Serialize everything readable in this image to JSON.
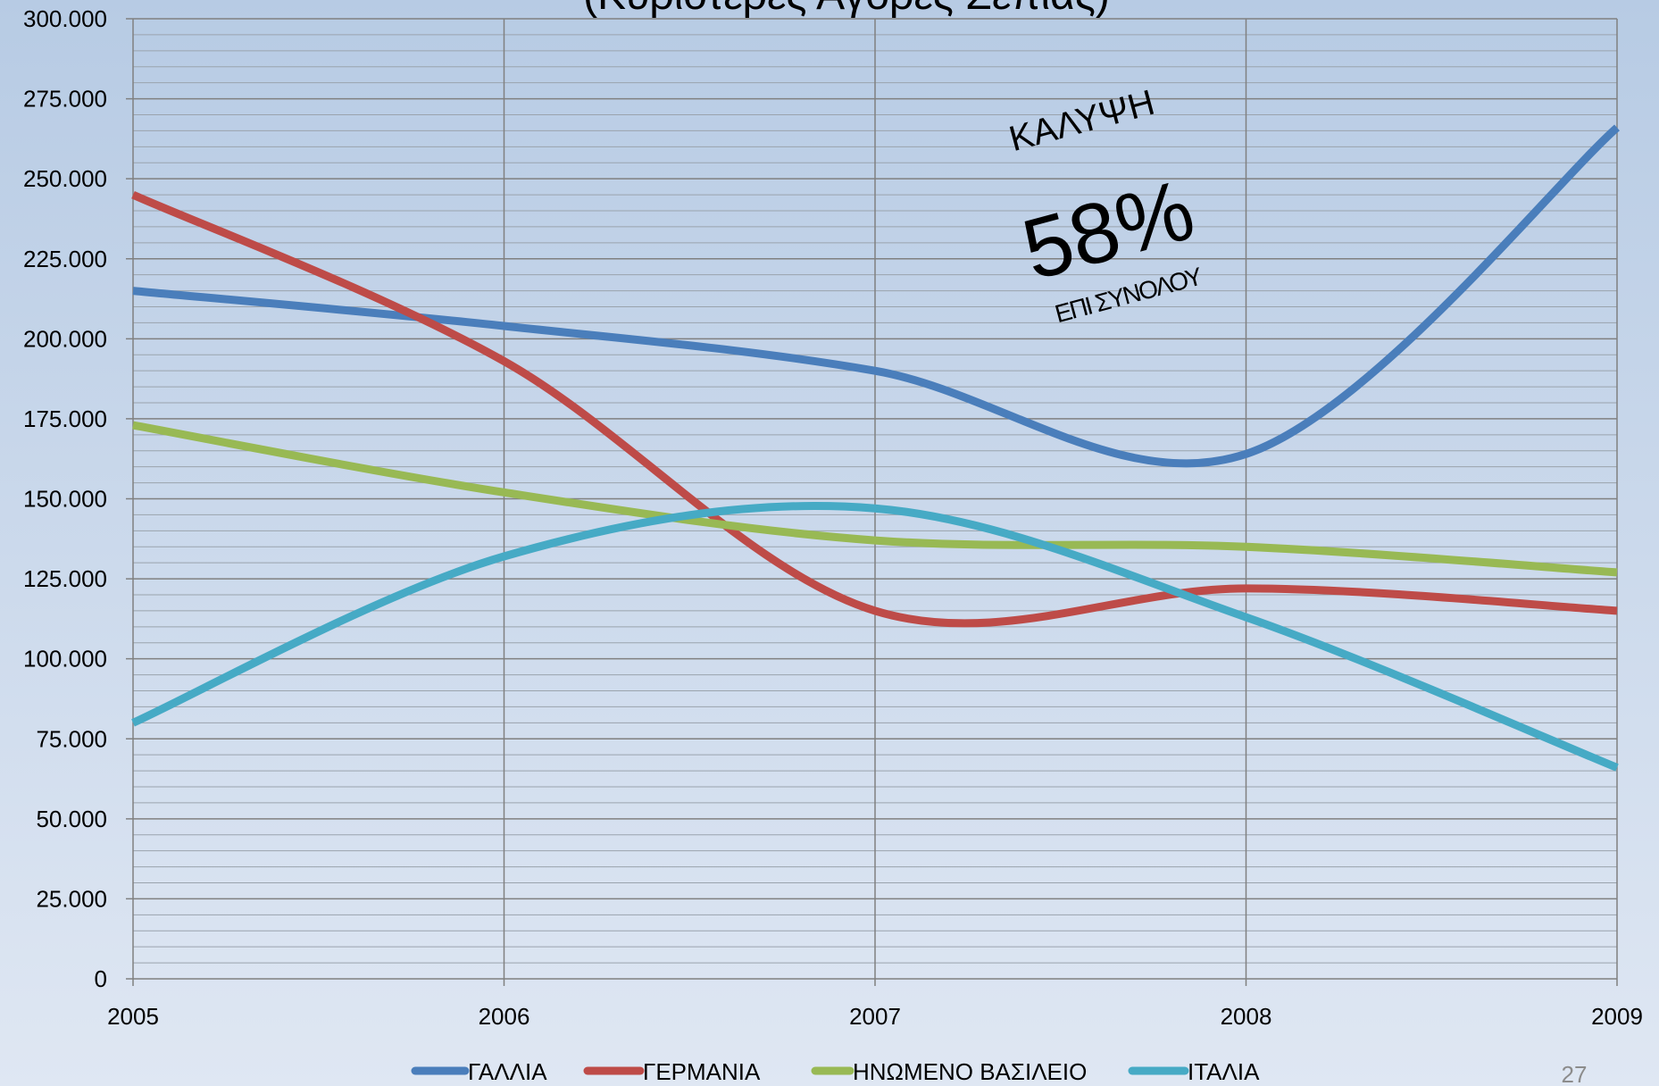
{
  "chart_data": {
    "type": "line",
    "title": "(Κυριότερες Αγορές Σέπιας)",
    "x": [
      2005,
      2006,
      2007,
      2008,
      2009
    ],
    "xlim": [
      2005,
      2009
    ],
    "xticks": [
      2005,
      2006,
      2007,
      2008,
      2009
    ],
    "ylim": [
      0,
      300000
    ],
    "yticks": [
      0,
      {
        "value": 25000,
        "label": "25.000"
      },
      {
        "value": 50000,
        "label": "50.000"
      },
      {
        "value": 75000,
        "label": "75.000"
      },
      {
        "value": 100000,
        "label": "100.000"
      },
      {
        "value": 125000,
        "label": "125.000"
      },
      {
        "value": 150000,
        "label": "150.000"
      },
      {
        "value": 175000,
        "label": "175.000"
      },
      {
        "value": 200000,
        "label": "200.000"
      },
      {
        "value": 225000,
        "label": "225.000"
      },
      {
        "value": 250000,
        "label": "250.000"
      },
      {
        "value": 275000,
        "label": "275.000"
      },
      {
        "value": 300000,
        "label": "300.000"
      }
    ],
    "grid": true,
    "minor_grid": true,
    "smooth": true,
    "legend": "bottom",
    "series": [
      {
        "name": "ΓΑΛΛΙΑ",
        "color": "#4a7ebb",
        "values": [
          215000,
          204000,
          190000,
          164000,
          266000
        ]
      },
      {
        "name": "ΓΕΡΜΑΝΙΑ",
        "color": "#be4b48",
        "values": [
          245000,
          193000,
          115000,
          122000,
          115000
        ]
      },
      {
        "name": "ΗΝΩΜΕΝΟ ΒΑΣΙΛΕΙΟ",
        "color": "#98b954",
        "values": [
          173000,
          152000,
          137000,
          135000,
          127000
        ]
      },
      {
        "name": "ΙΤΑΛΙΑ",
        "color": "#46aac5",
        "values": [
          80000,
          132000,
          147000,
          113000,
          66000
        ]
      }
    ],
    "annotations": [
      "ΚΑΛΥΨΗ",
      "58%",
      "ΕΠΙ ΣΥΝΟΛΟΥ"
    ],
    "page_number": "27"
  }
}
